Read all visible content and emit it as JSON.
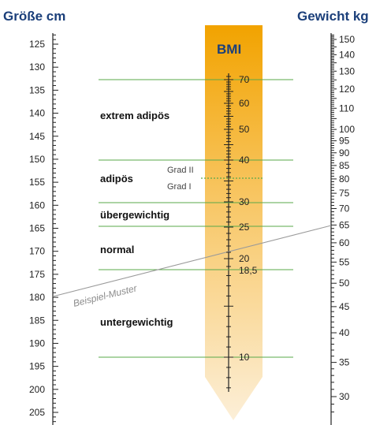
{
  "titles": {
    "height": "Größe cm",
    "weight": "Gewicht kg",
    "bmi": "BMI"
  },
  "height_axis": [
    125,
    130,
    135,
    140,
    145,
    150,
    155,
    160,
    165,
    170,
    175,
    180,
    185,
    190,
    195,
    200,
    205
  ],
  "weight_axis": [
    150,
    140,
    130,
    120,
    110,
    100,
    95,
    90,
    85,
    80,
    75,
    70,
    65,
    60,
    55,
    50,
    45,
    40,
    35,
    30
  ],
  "bmi_labels": [
    "70",
    "60",
    "50",
    "40",
    "30",
    "25",
    "20",
    "18,5",
    "10"
  ],
  "zones": {
    "extrem": "extrem adipös",
    "adipoes": "adipös",
    "uebergewichtig": "übergewichtig",
    "normal": "normal",
    "untergewichtig": "untergewichtig"
  },
  "grades": {
    "grad2": "Grad II",
    "grad1": "Grad I"
  },
  "example": {
    "label": "Beispiel-Muster"
  },
  "colors": {
    "title": "#1b3f7a",
    "arrow_top": "#f2a300",
    "arrow_bottom": "#fbe9c8",
    "zone_line": "#5aa84a",
    "example_line": "#9a9a9a"
  }
}
